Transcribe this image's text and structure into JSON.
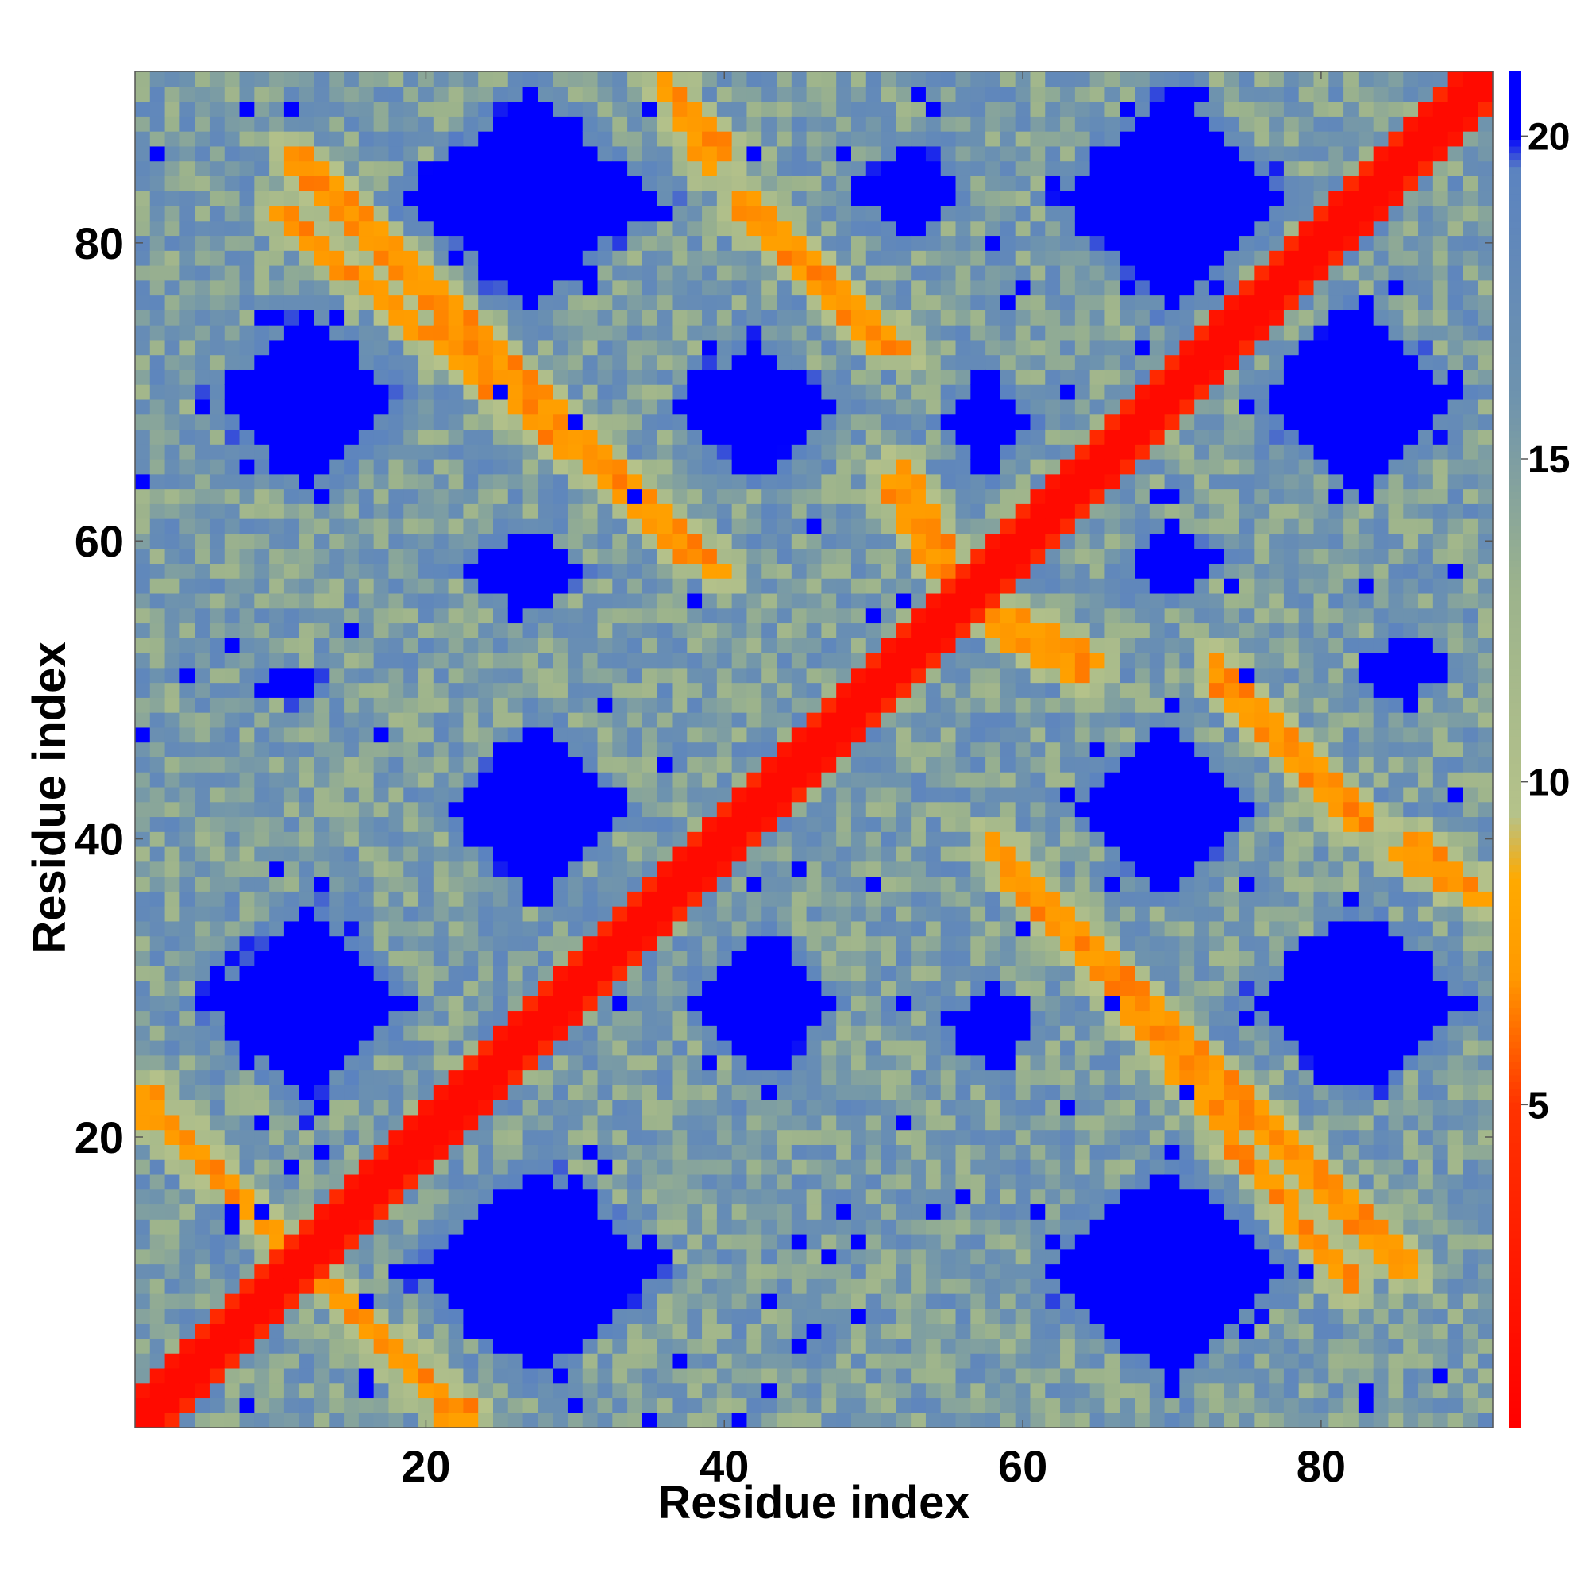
{
  "chart_data": {
    "type": "heatmap",
    "title": "",
    "xlabel": "Residue index",
    "ylabel": "Residue index",
    "n_residues": 91,
    "xlim": [
      0.5,
      91.5
    ],
    "ylim": [
      0.5,
      91.5
    ],
    "x_ticks": [
      20,
      40,
      60,
      80
    ],
    "y_ticks": [
      20,
      40,
      60,
      80
    ],
    "colorbar": {
      "range": [
        0,
        21
      ],
      "ticks": [
        5,
        10,
        15,
        20
      ],
      "stops": [
        {
          "value": 0,
          "color": "#ff0000"
        },
        {
          "value": 5,
          "color": "#ff3300"
        },
        {
          "value": 7,
          "color": "#ff9900"
        },
        {
          "value": 8.5,
          "color": "#ffaa00"
        },
        {
          "value": 9.5,
          "color": "#b5c28a"
        },
        {
          "value": 13,
          "color": "#9cb38c"
        },
        {
          "value": 16,
          "color": "#6e93ae"
        },
        {
          "value": 19.5,
          "color": "#5b83c0"
        },
        {
          "value": 20,
          "color": "#0000ff"
        }
      ]
    },
    "diagonal_band": {
      "direction": "main",
      "value": 2
    },
    "contact_streaks": [
      {
        "start": [
          1,
          23
        ],
        "end": [
          22,
          1
        ],
        "value": 7
      },
      {
        "start": [
          36,
          91
        ],
        "end": [
          39,
          85
        ],
        "value": 7
      },
      {
        "start": [
          11,
          86
        ],
        "end": [
          38,
          59
        ],
        "value": 7
      },
      {
        "start": [
          41,
          83
        ],
        "end": [
          51,
          73
        ],
        "value": 7
      },
      {
        "start": [
          52,
          65
        ],
        "end": [
          56,
          57
        ],
        "value": 7
      },
      {
        "start": [
          57,
          55
        ],
        "end": [
          64,
          51
        ],
        "value": 7
      },
      {
        "start": [
          58,
          40
        ],
        "end": [
          82,
          10
        ],
        "value": 7
      },
      {
        "start": [
          73,
          52
        ],
        "end": [
          82,
          41
        ],
        "value": 7
      },
      {
        "start": [
          86,
          40
        ],
        "end": [
          91,
          36
        ],
        "value": 7
      }
    ],
    "far_blocks": [
      {
        "x": [
          19,
          36
        ],
        "y": [
          3,
          19
        ]
      },
      {
        "x": [
          61,
          78
        ],
        "y": [
          3,
          19
        ]
      },
      {
        "x": [
          5,
          19
        ],
        "y": [
          22,
          36
        ]
      },
      {
        "x": [
          37,
          48
        ],
        "y": [
          24,
          34
        ]
      },
      {
        "x": [
          55,
          61
        ],
        "y": [
          24,
          31
        ]
      },
      {
        "x": [
          75,
          90
        ],
        "y": [
          22,
          36
        ]
      },
      {
        "x": [
          21,
          34
        ],
        "y": [
          36,
          48
        ]
      },
      {
        "x": [
          63,
          76
        ],
        "y": [
          36,
          48
        ]
      },
      {
        "x": [
          22,
          31
        ],
        "y": [
          55,
          61
        ]
      },
      {
        "x": [
          66,
          74
        ],
        "y": [
          56,
          61
        ]
      },
      {
        "x": [
          5,
          19
        ],
        "y": [
          63,
          76
        ]
      },
      {
        "x": [
          36,
          48
        ],
        "y": [
          64,
          74
        ]
      },
      {
        "x": [
          54,
          61
        ],
        "y": [
          64,
          72
        ]
      },
      {
        "x": [
          75,
          90
        ],
        "y": [
          63,
          76
        ]
      },
      {
        "x": [
          18,
          36
        ],
        "y": [
          75,
          91
        ]
      },
      {
        "x": [
          62,
          78
        ],
        "y": [
          75,
          91
        ]
      },
      {
        "x": [
          49,
          56
        ],
        "y": [
          80,
          87
        ]
      },
      {
        "x": [
          82,
          89
        ],
        "y": [
          49,
          54
        ]
      },
      {
        "x": [
          8,
          14
        ],
        "y": [
          49,
          52
        ]
      }
    ]
  }
}
